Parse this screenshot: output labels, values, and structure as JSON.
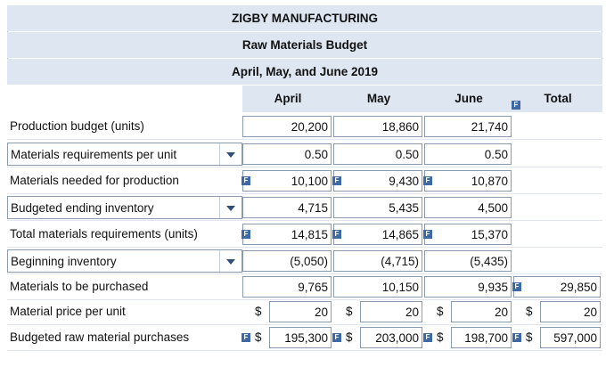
{
  "header": {
    "company": "ZIGBY MANUFACTURING",
    "title": "Raw Materials Budget",
    "period": "April, May, and June 2019"
  },
  "columns": [
    "April",
    "May",
    "June",
    "Total"
  ],
  "rows": [
    {
      "label": "Production budget (units)",
      "dropdown": false,
      "values": [
        "20,200",
        "18,860",
        "21,740",
        ""
      ]
    },
    {
      "label": "Materials requirements per unit",
      "dropdown": true,
      "values": [
        "0.50",
        "0.50",
        "0.50",
        ""
      ]
    },
    {
      "label": "Materials needed for production",
      "dropdown": false,
      "values": [
        "10,100",
        "9,430",
        "10,870",
        ""
      ]
    },
    {
      "label": "Budgeted ending inventory",
      "dropdown": true,
      "values": [
        "4,715",
        "5,435",
        "4,500",
        ""
      ]
    },
    {
      "label": "Total materials requirements (units)",
      "dropdown": false,
      "values": [
        "14,815",
        "14,865",
        "15,370",
        ""
      ]
    },
    {
      "label": "Beginning inventory",
      "dropdown": true,
      "values": [
        "(5,050)",
        "(4,715)",
        "(5,435)",
        ""
      ]
    },
    {
      "label": "Materials to be purchased",
      "dropdown": false,
      "values": [
        "9,765",
        "10,150",
        "9,935",
        "29,850"
      ]
    },
    {
      "label": "Material price per unit",
      "dropdown": false,
      "values": [
        "20",
        "20",
        "20",
        "20"
      ]
    },
    {
      "label": "Budgeted raw material purchases",
      "dropdown": false,
      "values": [
        "195,300",
        "203,000",
        "198,700",
        "597,000"
      ]
    }
  ],
  "currency_symbol": "$",
  "formula_badge": "F"
}
